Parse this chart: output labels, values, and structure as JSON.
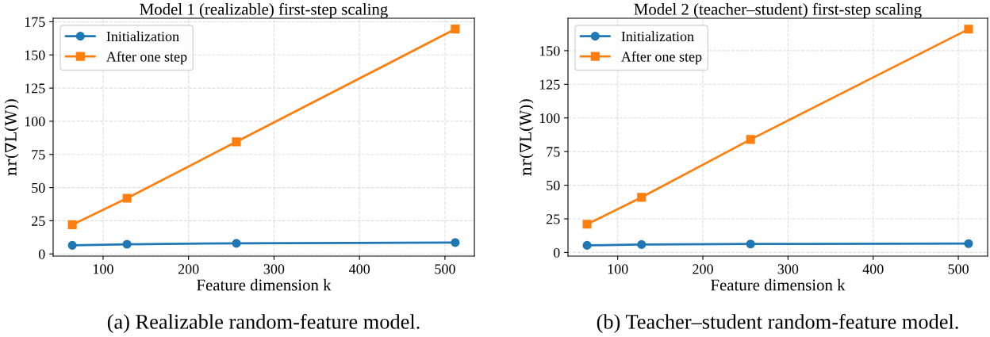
{
  "chart_data": [
    {
      "type": "line",
      "title": "Model 1 (realizable) first-step scaling",
      "xlabel": "Feature dimension k",
      "ylabel": "nr(∇L(W))",
      "x": [
        64,
        128,
        256,
        512
      ],
      "series": [
        {
          "name": "Initialization",
          "color": "#1f77b4",
          "marker": "circle",
          "values": [
            6.5,
            7.3,
            8.0,
            8.6
          ]
        },
        {
          "name": "After one step",
          "color": "#ff7f0e",
          "marker": "square",
          "values": [
            22,
            42,
            84.5,
            169.5
          ]
        }
      ],
      "xlim": [
        41.6,
        534.4
      ],
      "xticks": [
        100,
        200,
        300,
        400,
        500
      ],
      "ylim": [
        -1.65,
        177.65
      ],
      "yticks": [
        0,
        25,
        50,
        75,
        100,
        125,
        150,
        175
      ],
      "grid": true,
      "legend": "top left",
      "line_style": "solid",
      "annotations": [
        "(a) Realizable random-feature model."
      ]
    },
    {
      "type": "line",
      "title": "Model 2 (teacher–student) first-step scaling",
      "xlabel": "Feature dimension k",
      "ylabel": "nr(∇L(W))",
      "x": [
        64,
        128,
        256,
        512
      ],
      "series": [
        {
          "name": "Initialization",
          "color": "#1f77b4",
          "marker": "circle",
          "values": [
            5.3,
            5.9,
            6.3,
            6.6
          ]
        },
        {
          "name": "After one step",
          "color": "#ff7f0e",
          "marker": "square",
          "values": [
            21,
            41,
            84,
            166
          ]
        }
      ],
      "xlim": [
        41.6,
        534.4
      ],
      "xticks": [
        100,
        200,
        300,
        400,
        500
      ],
      "ylim": [
        -2.7,
        174.1
      ],
      "yticks": [
        0,
        25,
        50,
        75,
        100,
        125,
        150
      ],
      "grid": true,
      "legend": "top left",
      "line_style": "solid",
      "annotations": [
        "(b) Teacher–student random-feature model."
      ]
    }
  ]
}
